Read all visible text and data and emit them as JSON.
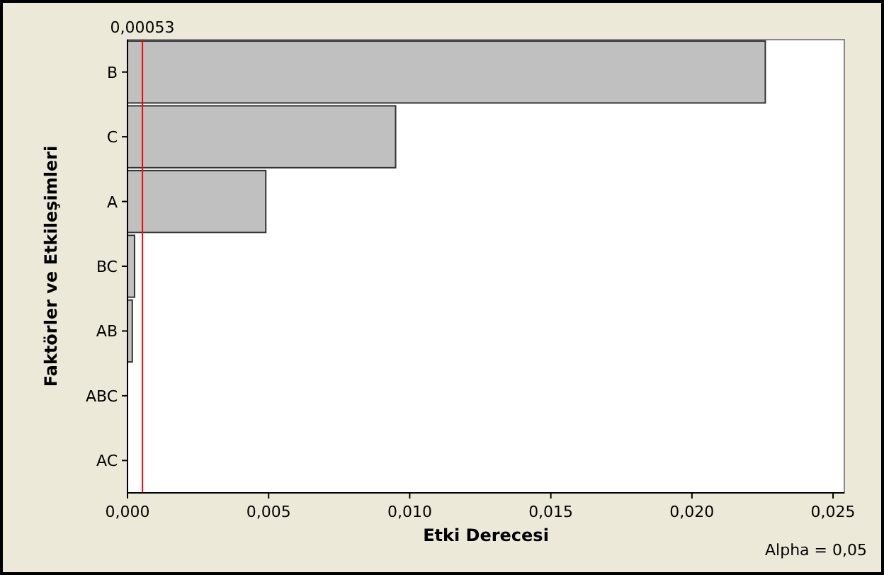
{
  "chart_data": {
    "type": "bar",
    "orientation": "horizontal",
    "xlabel": "Etki Derecesi",
    "ylabel": "Faktörler ve Etkileşimleri",
    "categories": [
      "B",
      "C",
      "A",
      "BC",
      "AB",
      "ABC",
      "AC"
    ],
    "values": [
      0.0226,
      0.0095,
      0.0049,
      0.00025,
      0.00017,
      0,
      0
    ],
    "color": "#c0c0c0",
    "xlim": [
      0,
      0.0254
    ],
    "xticks": [
      {
        "value": 0,
        "label": "0,000"
      },
      {
        "value": 0.005,
        "label": "0,005"
      },
      {
        "value": 0.01,
        "label": "0,010"
      },
      {
        "value": 0.015,
        "label": "0,015"
      },
      {
        "value": 0.02,
        "label": "0,020"
      },
      {
        "value": 0.025,
        "label": "0,025"
      }
    ],
    "ref_lines": [
      {
        "axis": "x",
        "value": 0.00053,
        "label": "0,00053",
        "color": "#ff0000"
      }
    ],
    "annotations": [
      "Alpha = 0,05"
    ],
    "grid": false
  }
}
